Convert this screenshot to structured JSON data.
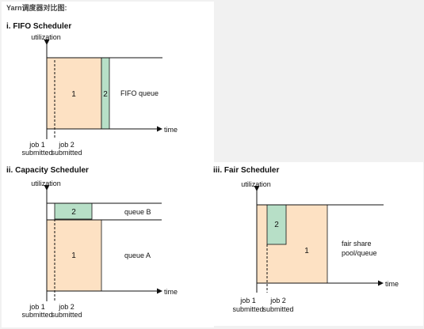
{
  "page_title": "Yarn调度器对比图:",
  "colors": {
    "job1_fill": "#fde1c3",
    "job2_fill": "#b7dfc7",
    "axis": "#111111",
    "panel_bg": "#ffffff",
    "page_bg": "#f1f1f1"
  },
  "axes": {
    "y_label": "utilization",
    "x_label": "time"
  },
  "labels": {
    "job1": "1",
    "job2": "2"
  },
  "submissions": {
    "job1_l1": "job 1",
    "job1_l2": "submitted",
    "job2_l1": "job 2",
    "job2_l2": "submitted"
  },
  "fifo": {
    "title": "i. FIFO Scheduler",
    "queue": "FIFO queue"
  },
  "capacity": {
    "title": "ii. Capacity Scheduler",
    "queue_b": "queue B",
    "queue_a": "queue A"
  },
  "fair": {
    "title": "iii. Fair Scheduler",
    "pool_l1": "fair share",
    "pool_l2": "pool/queue"
  }
}
